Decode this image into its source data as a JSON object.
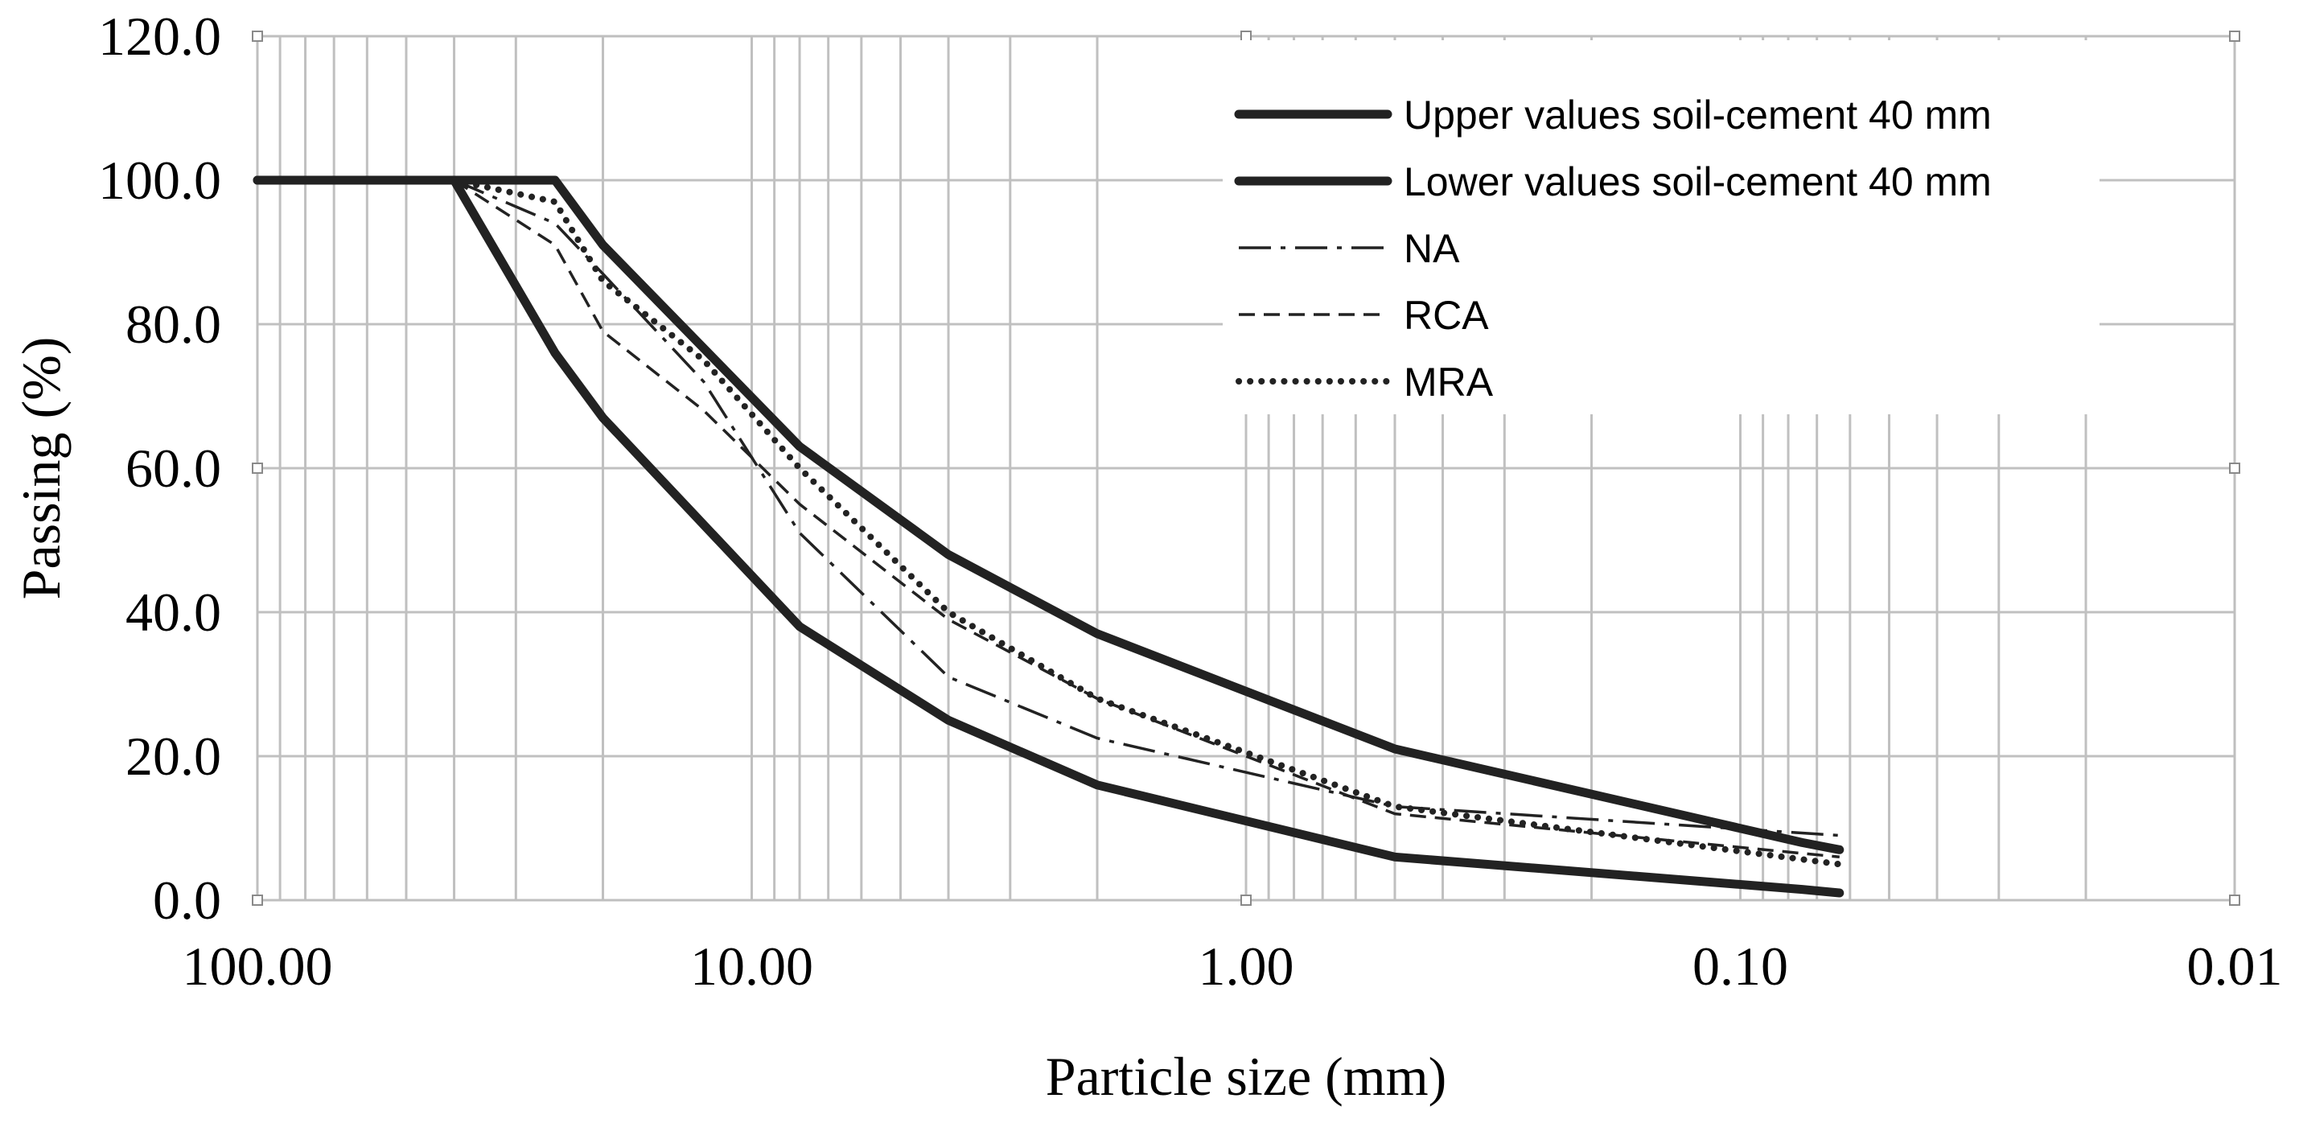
{
  "chart_data": {
    "type": "line",
    "x_scale": "log",
    "x_reversed": true,
    "title": "",
    "xlabel": "Particle size (mm)",
    "ylabel": "Passing (%)",
    "xlim": [
      100,
      0.01
    ],
    "ylim": [
      0,
      120
    ],
    "grid": true,
    "legend_position": "top-right",
    "y_ticks": [
      0,
      20,
      40,
      60,
      80,
      100,
      120
    ],
    "y_tick_labels": [
      "0.0",
      "20.0",
      "40.0",
      "60.0",
      "80.0",
      "100.0",
      "120.0"
    ],
    "x_ticks": [
      100,
      10,
      1,
      0.1,
      0.01
    ],
    "x_tick_labels": [
      "100.00",
      "10.00",
      "1.00",
      "0.10",
      "0.01"
    ],
    "series": [
      {
        "name": "Upper values soil-cement 40 mm",
        "style": "solid-thick",
        "color": "#222222",
        "x": [
          100,
          40,
          25,
          20,
          8,
          4,
          2,
          0.5,
          0.075,
          0.063
        ],
        "y": [
          100,
          100,
          100,
          91,
          63,
          48,
          37,
          21,
          8,
          7
        ]
      },
      {
        "name": "Lower values soil-cement 40 mm",
        "style": "solid-thick",
        "color": "#222222",
        "x": [
          100,
          40,
          25,
          20,
          8,
          4,
          2,
          0.5,
          0.075,
          0.063
        ],
        "y": [
          100,
          100,
          76,
          67,
          38,
          25,
          16,
          6,
          1.5,
          1
        ]
      },
      {
        "name": "NA",
        "style": "dash-dot",
        "color": "#222222",
        "x": [
          40,
          25,
          20,
          12.5,
          8,
          4,
          2,
          0.5,
          0.063
        ],
        "y": [
          100,
          94,
          87,
          72,
          51,
          31,
          22.5,
          13,
          9
        ]
      },
      {
        "name": "RCA",
        "style": "dashed",
        "color": "#222222",
        "x": [
          40,
          25,
          20,
          12.5,
          8,
          4,
          2,
          0.5,
          0.063
        ],
        "y": [
          100,
          91,
          79,
          68,
          55,
          39,
          28,
          12,
          6
        ]
      },
      {
        "name": "MRA",
        "style": "dotted",
        "color": "#222222",
        "x": [
          40,
          25,
          20,
          12.5,
          8,
          4,
          2,
          0.5,
          0.063
        ],
        "y": [
          100,
          97,
          86,
          75,
          60,
          40,
          28,
          13,
          5
        ]
      }
    ]
  }
}
